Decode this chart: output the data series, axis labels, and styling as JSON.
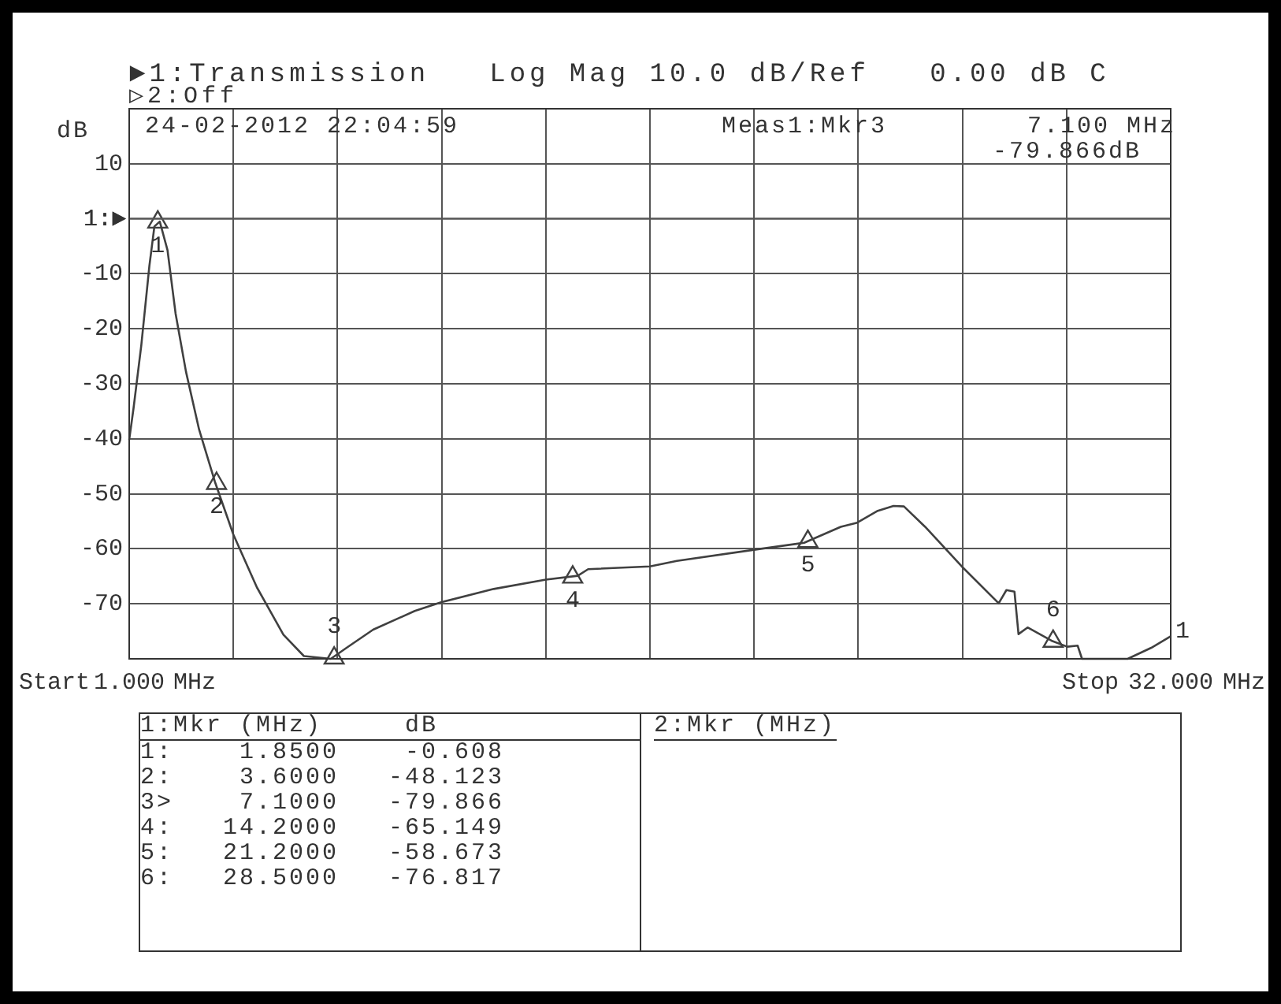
{
  "chart_data": {
    "type": "line",
    "title": "►1:Transmission   Log Mag 10.0 dB/Ref   0.00 dB C",
    "subtitle": "▷2:Off",
    "ylabel": "dB",
    "xlim": [
      1,
      32
    ],
    "xticks": [
      {
        "value": 1,
        "label": "1.000"
      },
      {
        "value": 4.1,
        "label": null
      },
      {
        "value": 7.2,
        "label": null
      },
      {
        "value": 10.3,
        "label": null
      },
      {
        "value": 13.4,
        "label": null
      },
      {
        "value": 16.5,
        "label": null
      },
      {
        "value": 19.6,
        "label": null
      },
      {
        "value": 22.7,
        "label": null
      },
      {
        "value": 25.8,
        "label": null
      },
      {
        "value": 28.9,
        "label": null
      },
      {
        "value": 32,
        "label": "32.000"
      }
    ],
    "ylim": [
      -80,
      20
    ],
    "yticks": [
      {
        "value": -80,
        "label": null
      },
      -70,
      -60,
      -50,
      -40,
      -30,
      -20,
      -10,
      10,
      {
        "value": 20,
        "label": null
      }
    ],
    "ref_lines": [
      {
        "axis": "y",
        "value": 0,
        "label": "1:►",
        "color": "#555555"
      }
    ],
    "grid": true,
    "series": [
      {
        "type": "line",
        "color": "#404040",
        "marker": "none",
        "x": [
          1.0,
          1.13,
          1.36,
          1.6,
          1.75,
          1.91,
          2.14,
          2.38,
          2.69,
          3.08,
          3.55,
          4.1,
          4.8,
          5.59,
          6.2,
          7.0,
          7.47,
          8.26,
          9.5,
          10.3,
          11.85,
          13.4,
          14.35,
          14.66,
          16.5,
          17.3,
          19.68,
          21.09,
          22.18,
          22.65,
          23.28,
          23.75,
          24.06,
          24.69,
          25.78,
          26.88,
          27.11,
          27.35,
          27.47,
          27.74,
          28.45,
          28.92,
          29.23,
          29.36,
          30.72,
          31.42,
          32.0
        ],
        "values": [
          -40.2,
          -34.4,
          -23,
          -8.6,
          -1.4,
          -0.5,
          -5.7,
          -17.2,
          -27.8,
          -38.3,
          -47.8,
          -57.4,
          -67,
          -75.6,
          -79.5,
          -80,
          -78,
          -74.7,
          -71.3,
          -69.7,
          -67.3,
          -65.6,
          -64.9,
          -63.7,
          -63.2,
          -62.2,
          -60.1,
          -58.9,
          -56,
          -55.3,
          -53.1,
          -52.2,
          -52.3,
          -56,
          -63.2,
          -69.9,
          -67.5,
          -67.8,
          -75.5,
          -74.3,
          -76.7,
          -77.8,
          -77.6,
          -80,
          -80,
          -78,
          -75.9
        ]
      },
      {
        "type": "scatter",
        "name": "1",
        "color": "#404040",
        "marker": "triangle",
        "x": [
          1.85
        ],
        "values": [
          -0.608
        ]
      },
      {
        "type": "scatter",
        "name": "2",
        "color": "#404040",
        "marker": "triangle",
        "x": [
          3.6
        ],
        "values": [
          -48.123
        ]
      },
      {
        "type": "scatter",
        "name": "3",
        "color": "#404040",
        "marker": "triangle",
        "x": [
          7.1
        ],
        "values": [
          -79.866
        ]
      },
      {
        "type": "scatter",
        "name": "4",
        "color": "#404040",
        "marker": "triangle",
        "x": [
          14.2
        ],
        "values": [
          -65.149
        ]
      },
      {
        "type": "scatter",
        "name": "5",
        "color": "#404040",
        "marker": "triangle",
        "x": [
          21.2
        ],
        "values": [
          -58.673
        ]
      },
      {
        "type": "scatter",
        "name": "6",
        "color": "#404040",
        "marker": "triangle",
        "x": [
          28.5
        ],
        "values": [
          -76.817
        ]
      }
    ],
    "annotations": [
      "24-02-2012 22:04:59",
      "Meas1:Mkr3",
      "7.100 MHz",
      "-79.866dB",
      "Start",
      "MHz",
      "Stop",
      "MHz",
      "1:Mkr (MHz)     dB",
      "1:    1.8500    -0.608",
      "2:    3.6000   -48.123",
      "3>    7.1000   -79.866",
      "4:   14.2000   -65.149",
      "5:   21.2000   -58.673",
      "6:   28.5000   -76.817",
      "2:Mkr (MHz)",
      {
        "text": "1",
        "x": 32,
        "y": -75.9
      }
    ]
  }
}
